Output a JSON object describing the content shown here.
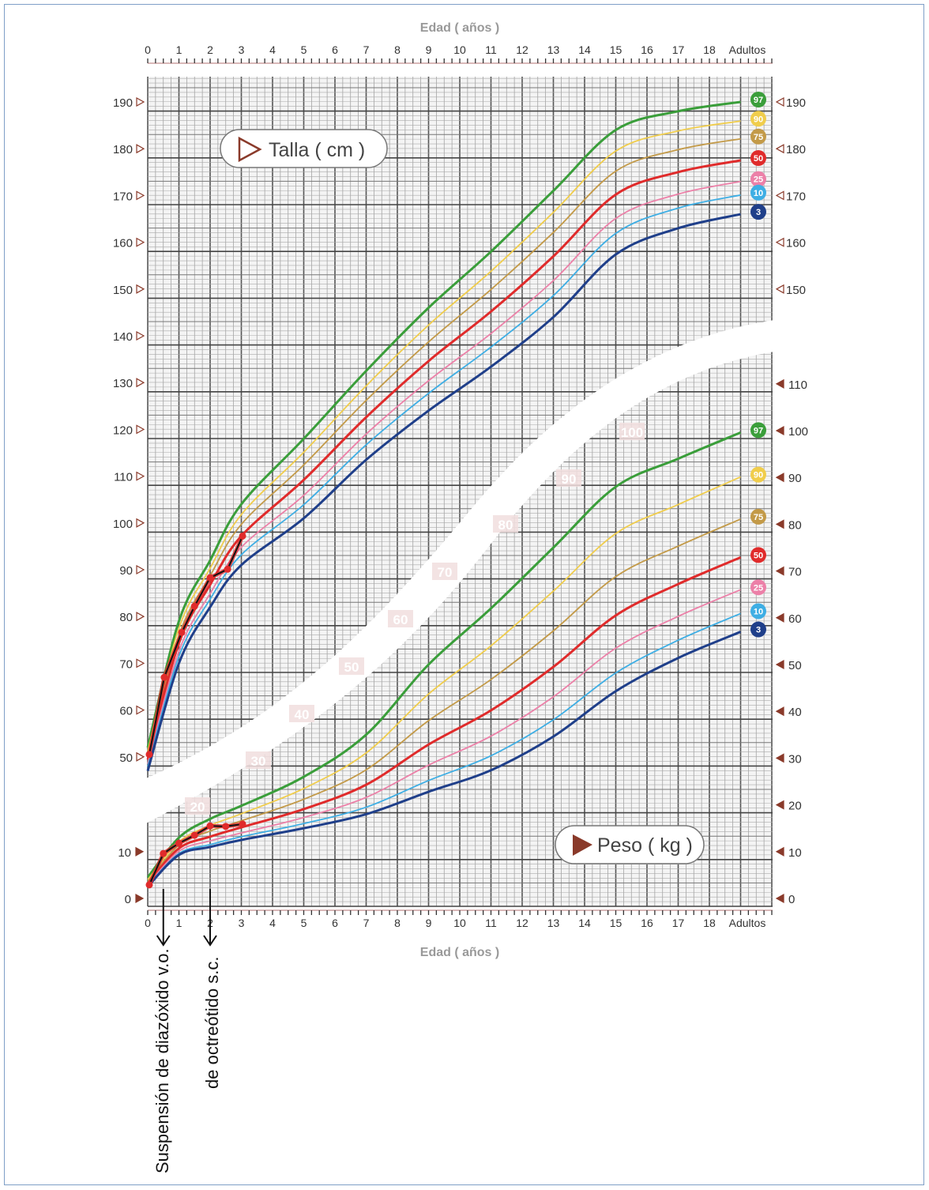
{
  "chart_data": {
    "type": "line",
    "xlabel_top": "Edad ( años )",
    "xlabel_bottom": "Edad ( años )",
    "x_ticks": [
      "0",
      "1",
      "2",
      "3",
      "4",
      "5",
      "6",
      "7",
      "8",
      "9",
      "10",
      "11",
      "12",
      "13",
      "14",
      "15",
      "16",
      "17",
      "18",
      "Adultos"
    ],
    "xlim": [
      0,
      20
    ],
    "grid": true,
    "height_panel": {
      "title": "Talla ( cm )",
      "y_ticks_left": [
        50,
        60,
        70,
        80,
        90,
        100,
        110,
        120,
        130,
        140,
        150,
        160,
        170,
        180,
        190
      ],
      "y_ticks_right": [
        150,
        160,
        170,
        180,
        190
      ],
      "ylim": [
        45,
        195
      ],
      "ages": [
        0,
        1,
        2,
        3,
        5,
        7,
        9,
        11,
        13,
        15,
        17,
        19
      ],
      "percentiles": [
        {
          "name": "97",
          "color": "#3a9e3a",
          "values": [
            52,
            79,
            92,
            104,
            118,
            132.5,
            146,
            158,
            171,
            184,
            188,
            190
          ]
        },
        {
          "name": "90",
          "color": "#f0cd4c",
          "values": [
            51.2,
            77.5,
            90.3,
            101.8,
            115.1,
            129.3,
            142.3,
            153.8,
            166.4,
            179.5,
            183.8,
            185.9
          ]
        },
        {
          "name": "75",
          "color": "#c39a48",
          "values": [
            50.4,
            76,
            88.7,
            99.7,
            112.4,
            126.2,
            138.7,
            149.9,
            162.1,
            175.2,
            179.8,
            182.1
          ]
        },
        {
          "name": "50",
          "color": "#e02b2b",
          "values": [
            49.4,
            74.3,
            86.8,
            97.2,
            109.2,
            122.6,
            134.6,
            145.2,
            157,
            170.2,
            175,
            177.5
          ]
        },
        {
          "name": "25",
          "color": "#ec80a8",
          "values": [
            48.5,
            72.6,
            84.9,
            94.8,
            105.9,
            119,
            130.4,
            140.5,
            151.8,
            165.1,
            170.3,
            173
          ]
        },
        {
          "name": "10",
          "color": "#3eaee4",
          "values": [
            47.9,
            71.5,
            83.7,
            93.2,
            103.9,
            116.7,
            127.7,
            137.6,
            148.6,
            161.9,
            167.3,
            170.1
          ]
        },
        {
          "name": "3",
          "color": "#1f3f8a",
          "values": [
            47,
            70,
            82,
            91,
            101,
            113.5,
            124,
            133.4,
            144,
            157.4,
            163,
            166
          ]
        }
      ],
      "patient": {
        "ages": [
          0.05,
          0.53,
          1.09,
          1.5,
          2.0,
          2.56,
          3.04
        ],
        "values": [
          50.5,
          67,
          76.6,
          82.2,
          88.3,
          90.1,
          97.2
        ]
      }
    },
    "weight_panel": {
      "title": "Peso ( kg )",
      "y_ticks_left": [
        0,
        10
      ],
      "y_ticks_right": [
        0,
        10,
        20,
        30,
        40,
        50,
        60,
        70,
        80,
        90,
        100,
        110
      ],
      "diagonal_labels": [
        "20",
        "30",
        "40",
        "50",
        "60",
        "70",
        "80",
        "90",
        "100"
      ],
      "ylim": [
        0,
        115
      ],
      "ages": [
        0,
        1,
        2,
        3,
        5,
        7,
        9,
        11,
        13,
        15,
        17,
        19
      ],
      "percentiles": [
        {
          "name": "97",
          "color": "#3a9e3a",
          "values": [
            4.5,
            13,
            17,
            19.8,
            26,
            35,
            50,
            62,
            75,
            88,
            94,
            99.6
          ]
        },
        {
          "name": "90",
          "color": "#f0cd4c",
          "values": [
            4.0,
            12.1,
            15.6,
            18.1,
            23.5,
            31.1,
            43.7,
            54,
            65.7,
            78,
            84.2,
            90.1
          ]
        },
        {
          "name": "75",
          "color": "#c39a48",
          "values": [
            3.6,
            11.4,
            14.4,
            16.6,
            21.2,
            27.5,
            38,
            46.8,
            57.2,
            68.8,
            75.3,
            81.1
          ]
        },
        {
          "name": "50",
          "color": "#e02b2b",
          "values": [
            3.2,
            10.7,
            13.2,
            15.2,
            19.1,
            24.3,
            32.9,
            40.2,
            49.5,
            60.5,
            67.2,
            72.9
          ]
        },
        {
          "name": "25",
          "color": "#ec80a8",
          "values": [
            2.9,
            10.1,
            12.3,
            14,
            17.3,
            21.6,
            28.5,
            34.7,
            43.1,
            53.5,
            60.3,
            66
          ]
        },
        {
          "name": "10",
          "color": "#3eaee4",
          "values": [
            2.7,
            9.6,
            11.5,
            13.2,
            16,
            19.5,
            25.2,
            30.5,
            38.2,
            48.2,
            55.2,
            60.9
          ]
        },
        {
          "name": "3",
          "color": "#1f3f8a",
          "values": [
            2.5,
            9.3,
            11,
            12.5,
            15,
            18,
            22.8,
            27.4,
            34.6,
            44.3,
            51.4,
            57
          ]
        }
      ],
      "patient": {
        "ages": [
          0.05,
          0.5,
          1.0,
          1.5,
          2.0,
          2.5,
          3.04
        ],
        "values": [
          2.9,
          9.6,
          11.8,
          13.5,
          15.5,
          15.4,
          15.9
        ]
      }
    },
    "annotations": [
      {
        "age": 0.5,
        "text": "Suspensión de diazóxido v.o."
      },
      {
        "age": 2,
        "text": "de octreótido s.c."
      }
    ]
  }
}
